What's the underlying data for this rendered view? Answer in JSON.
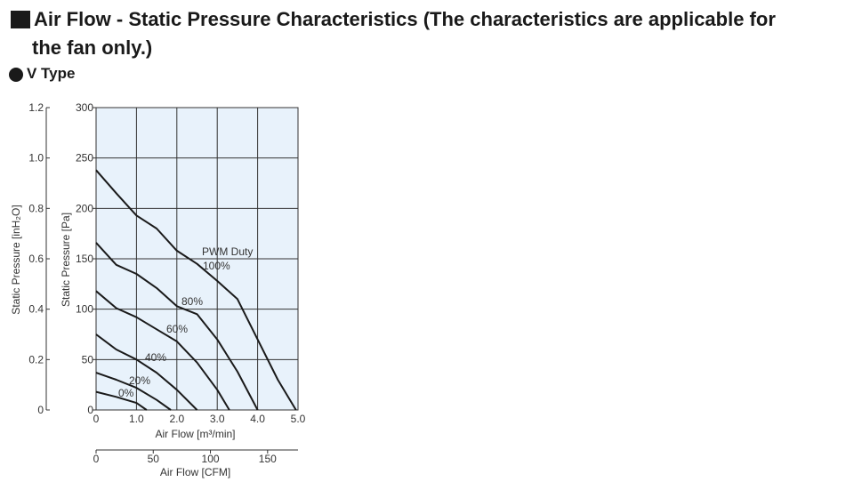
{
  "heading": {
    "line1": "Air Flow - Static Pressure Characteristics (The characteristics are applicable for",
    "line2": "the fan only.)"
  },
  "subtitle": "V Type",
  "chart_data": {
    "type": "line",
    "xlabel": "Air Flow [m³/min]",
    "ylabel": "Static Pressure [Pa]",
    "secondary_xlabel": "Air Flow [CFM]",
    "secondary_ylabel": "Static Pressure [inH₂O]",
    "xlim": [
      0,
      5.0
    ],
    "ylim": [
      0,
      300
    ],
    "secondary_xlim": [
      0,
      176.6
    ],
    "secondary_ylim": [
      0,
      1.2
    ],
    "x_ticks": [
      "0",
      "1.0",
      "2.0",
      "3.0",
      "4.0",
      "5.0"
    ],
    "y_ticks": [
      "0",
      "50",
      "100",
      "150",
      "200",
      "250",
      "300"
    ],
    "secondary_x_ticks": [
      "0",
      "50",
      "100",
      "150"
    ],
    "secondary_y_ticks": [
      "0",
      "0.2",
      "0.4",
      "0.6",
      "0.8",
      "1.0",
      "1.2"
    ],
    "grid": true,
    "legend_title": "PWM Duty",
    "series": [
      {
        "name": "100%",
        "points": [
          [
            0,
            238
          ],
          [
            0.5,
            215
          ],
          [
            1.0,
            193
          ],
          [
            1.5,
            180
          ],
          [
            2.0,
            158
          ],
          [
            2.5,
            145
          ],
          [
            3.0,
            128
          ],
          [
            3.5,
            110
          ],
          [
            4.0,
            70
          ],
          [
            4.5,
            30
          ],
          [
            4.95,
            0
          ]
        ]
      },
      {
        "name": "80%",
        "points": [
          [
            0,
            166
          ],
          [
            0.5,
            144
          ],
          [
            1.0,
            135
          ],
          [
            1.5,
            121
          ],
          [
            2.0,
            103
          ],
          [
            2.5,
            95
          ],
          [
            3.0,
            70
          ],
          [
            3.5,
            38
          ],
          [
            4.0,
            0
          ]
        ]
      },
      {
        "name": "60%",
        "points": [
          [
            0,
            118
          ],
          [
            0.5,
            101
          ],
          [
            1.0,
            92
          ],
          [
            1.5,
            80
          ],
          [
            2.0,
            68
          ],
          [
            2.5,
            47
          ],
          [
            3.0,
            20
          ],
          [
            3.3,
            0
          ]
        ]
      },
      {
        "name": "40%",
        "points": [
          [
            0,
            75
          ],
          [
            0.5,
            60
          ],
          [
            1.0,
            50
          ],
          [
            1.5,
            37
          ],
          [
            2.0,
            20
          ],
          [
            2.5,
            0
          ]
        ]
      },
      {
        "name": "20%",
        "points": [
          [
            0,
            37
          ],
          [
            0.5,
            30
          ],
          [
            1.0,
            22
          ],
          [
            1.5,
            10
          ],
          [
            1.85,
            0
          ]
        ]
      },
      {
        "name": "0%",
        "points": [
          [
            0,
            18
          ],
          [
            0.5,
            13
          ],
          [
            1.0,
            7
          ],
          [
            1.25,
            0
          ]
        ]
      }
    ]
  },
  "colors": {
    "plot_bg": "#e8f2fb",
    "grid": "#333333",
    "curve": "#1a1a1a"
  }
}
